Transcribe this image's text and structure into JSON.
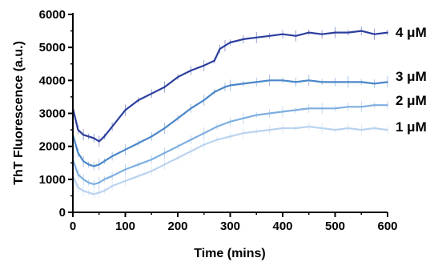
{
  "chart_data": {
    "type": "line",
    "xlabel": "Time (mins)",
    "ylabel": "ThT Fluorescence (a.u.)",
    "xlim": [
      0,
      600
    ],
    "ylim": [
      0,
      6000
    ],
    "x_ticks": [
      0,
      100,
      200,
      300,
      400,
      500,
      600
    ],
    "y_ticks": [
      0,
      1000,
      2000,
      3000,
      4000,
      5000,
      6000
    ],
    "grid": false,
    "legend": "none",
    "error_bars": true,
    "series": [
      {
        "name": "4 μM",
        "color": "#2c3e9e",
        "x": [
          0,
          10,
          20,
          30,
          40,
          50,
          60,
          75,
          100,
          125,
          150,
          175,
          200,
          225,
          250,
          270,
          280,
          290,
          300,
          325,
          350,
          375,
          400,
          425,
          450,
          475,
          500,
          525,
          550,
          575,
          600
        ],
        "y": [
          3150,
          2500,
          2350,
          2300,
          2250,
          2150,
          2300,
          2600,
          3100,
          3400,
          3600,
          3800,
          4100,
          4300,
          4450,
          4600,
          4950,
          5050,
          5150,
          5250,
          5300,
          5350,
          5400,
          5350,
          5450,
          5400,
          5450,
          5450,
          5500,
          5400,
          5450
        ]
      },
      {
        "name": "3 μM",
        "color": "#4a86c8",
        "x": [
          0,
          10,
          20,
          30,
          40,
          50,
          60,
          75,
          100,
          125,
          150,
          175,
          200,
          225,
          250,
          270,
          290,
          300,
          325,
          350,
          375,
          400,
          425,
          450,
          475,
          500,
          525,
          550,
          575,
          600
        ],
        "y": [
          2350,
          1800,
          1550,
          1450,
          1400,
          1450,
          1550,
          1700,
          1900,
          2100,
          2300,
          2550,
          2850,
          3150,
          3400,
          3650,
          3800,
          3850,
          3900,
          3950,
          4000,
          4000,
          3950,
          4000,
          3950,
          3950,
          3950,
          3950,
          3900,
          3950
        ]
      },
      {
        "name": "2 μM",
        "color": "#7eaee0",
        "x": [
          0,
          10,
          20,
          30,
          40,
          50,
          60,
          75,
          100,
          125,
          150,
          175,
          200,
          225,
          250,
          275,
          300,
          325,
          350,
          375,
          400,
          425,
          450,
          475,
          500,
          525,
          550,
          575,
          600
        ],
        "y": [
          1600,
          1150,
          1000,
          900,
          850,
          900,
          1000,
          1100,
          1300,
          1450,
          1600,
          1800,
          2000,
          2200,
          2400,
          2600,
          2750,
          2850,
          2950,
          3000,
          3050,
          3100,
          3150,
          3150,
          3150,
          3200,
          3200,
          3250,
          3250
        ]
      },
      {
        "name": "1 μM",
        "color": "#b9d3ef",
        "x": [
          0,
          10,
          20,
          30,
          40,
          50,
          60,
          75,
          100,
          125,
          150,
          175,
          200,
          225,
          250,
          275,
          300,
          325,
          350,
          375,
          400,
          425,
          450,
          475,
          500,
          525,
          550,
          575,
          600
        ],
        "y": [
          1100,
          750,
          650,
          600,
          550,
          600,
          650,
          800,
          950,
          1100,
          1250,
          1450,
          1650,
          1850,
          2050,
          2200,
          2300,
          2400,
          2450,
          2500,
          2550,
          2550,
          2600,
          2550,
          2500,
          2550,
          2500,
          2550,
          2500
        ]
      }
    ]
  }
}
